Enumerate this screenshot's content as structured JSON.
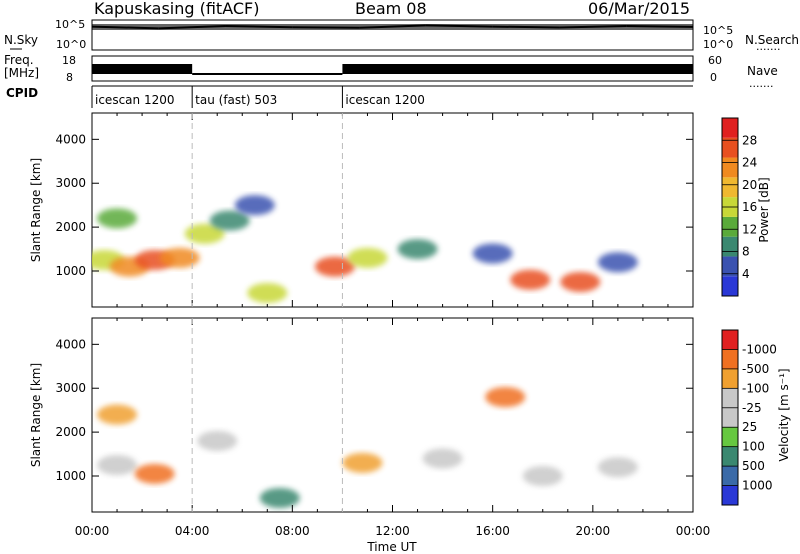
{
  "header": {
    "station": "Kapuskasing (fitACF)",
    "beam": "Beam 08",
    "date": "06/Mar/2015"
  },
  "left_labels": {
    "nsky": "N.Sky",
    "freq": "Freq.",
    "freq_unit": "[MHz]",
    "cpid": "CPID"
  },
  "right_labels": {
    "nsearch": "N.Search",
    "nave": "Nave",
    "dots": "......."
  },
  "panels": {
    "noise": {
      "yticks": [
        "10^5",
        "10^0"
      ],
      "right_yticks": [
        "10^5",
        "10^0"
      ],
      "sky_level": [
        0.78,
        0.72,
        0.8,
        0.76,
        0.74,
        0.82,
        0.78,
        0.75,
        0.8,
        0.77
      ]
    },
    "freq": {
      "yticks": [
        "18",
        "8"
      ],
      "right_yticks": [
        "60",
        "0"
      ],
      "segments": [
        {
          "start_h": 0,
          "end_h": 4,
          "level": "high"
        },
        {
          "start_h": 4,
          "end_h": 10,
          "level": "low"
        },
        {
          "start_h": 10,
          "end_h": 24,
          "level": "high"
        }
      ]
    },
    "cpid": {
      "segments": [
        {
          "start_h": 0,
          "end_h": 4,
          "label": "icescan 1200"
        },
        {
          "start_h": 4,
          "end_h": 10,
          "label": "tau (fast) 503"
        },
        {
          "start_h": 10,
          "end_h": 24,
          "label": "icescan 1200"
        }
      ]
    }
  },
  "power_colorbar": {
    "label": "Power [dB]",
    "ticks": [
      "4",
      "8",
      "12",
      "16",
      "20",
      "24",
      "28"
    ],
    "colors": [
      "#2a38d6",
      "#3a52b0",
      "#3a8870",
      "#5aaa3a",
      "#c8d838",
      "#f0b830",
      "#f08a20",
      "#e85020",
      "#e02020"
    ]
  },
  "velocity_colorbar": {
    "label": "Velocity [m s⁻¹]",
    "ticks": [
      "1000",
      "500",
      "100",
      "25",
      "-25",
      "-100",
      "-500",
      "-1000"
    ],
    "colors": [
      "#2a38d6",
      "#3a6aa8",
      "#3a8870",
      "#66c840",
      "#c8c8c8",
      "#c8c8c8",
      "#f0a030",
      "#f07020",
      "#e02020"
    ]
  },
  "chart_data": [
    {
      "type": "heatmap",
      "title": "",
      "ylabel": "Slant Range [km]",
      "xlabel": "",
      "xlim": [
        0,
        24
      ],
      "ylim": [
        180,
        4600
      ],
      "x_ticks": [
        "00:00",
        "04:00",
        "08:00",
        "12:00",
        "16:00",
        "20:00",
        "00:00"
      ],
      "y_ticks": [
        1000,
        2000,
        3000,
        4000
      ],
      "blobs": [
        {
          "x": 0.5,
          "y": 1250,
          "value": 16
        },
        {
          "x": 1.5,
          "y": 1100,
          "value": 24
        },
        {
          "x": 2.5,
          "y": 1250,
          "value": 28
        },
        {
          "x": 3.5,
          "y": 1300,
          "value": 24
        },
        {
          "x": 1.0,
          "y": 2200,
          "value": 12
        },
        {
          "x": 4.5,
          "y": 1850,
          "value": 16
        },
        {
          "x": 5.5,
          "y": 2150,
          "value": 8
        },
        {
          "x": 6.5,
          "y": 2500,
          "value": 4
        },
        {
          "x": 7.0,
          "y": 500,
          "value": 16
        },
        {
          "x": 9.7,
          "y": 1100,
          "value": 28
        },
        {
          "x": 11.0,
          "y": 1300,
          "value": 16
        },
        {
          "x": 13.0,
          "y": 1500,
          "value": 8
        },
        {
          "x": 16.0,
          "y": 1400,
          "value": 4
        },
        {
          "x": 17.5,
          "y": 800,
          "value": 28
        },
        {
          "x": 19.5,
          "y": 750,
          "value": 28
        },
        {
          "x": 21.0,
          "y": 1200,
          "value": 4
        }
      ]
    },
    {
      "type": "heatmap",
      "title": "",
      "ylabel": "Slant Range [km]",
      "xlabel": "Time UT",
      "xlim": [
        0,
        24
      ],
      "ylim": [
        180,
        4600
      ],
      "x_ticks": [
        "00:00",
        "04:00",
        "08:00",
        "12:00",
        "16:00",
        "20:00",
        "00:00"
      ],
      "y_ticks": [
        1000,
        2000,
        3000,
        4000
      ],
      "blobs": [
        {
          "x": 1.0,
          "y": 1250,
          "value": 0
        },
        {
          "x": 2.5,
          "y": 1050,
          "value": -500
        },
        {
          "x": 1.0,
          "y": 2400,
          "value": -100
        },
        {
          "x": 5.0,
          "y": 1800,
          "value": 0
        },
        {
          "x": 7.5,
          "y": 500,
          "value": 100
        },
        {
          "x": 10.8,
          "y": 1300,
          "value": -100
        },
        {
          "x": 14.0,
          "y": 1400,
          "value": 0
        },
        {
          "x": 18.0,
          "y": 1000,
          "value": 0
        },
        {
          "x": 21.0,
          "y": 1200,
          "value": 0
        },
        {
          "x": 16.5,
          "y": 2800,
          "value": -500
        }
      ]
    }
  ]
}
